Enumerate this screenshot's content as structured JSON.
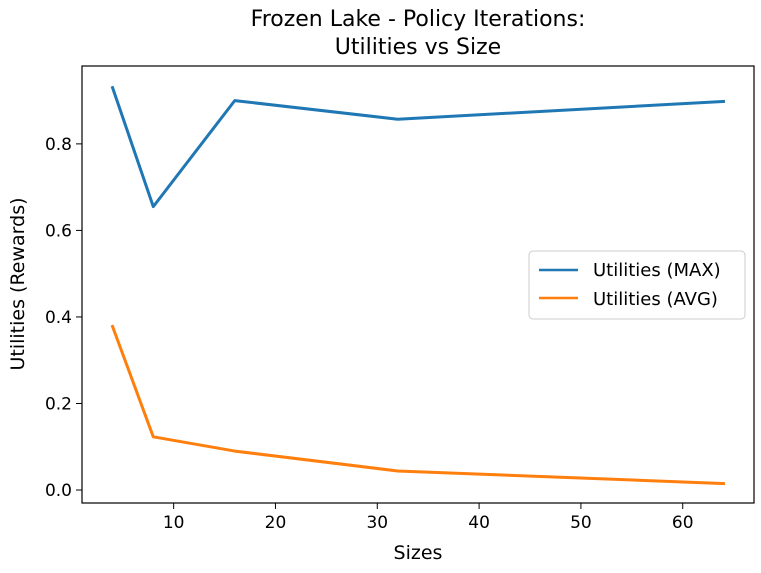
{
  "chart_data": {
    "type": "line",
    "title_line1": "Frozen Lake - Policy Iterations:",
    "title_line2": "Utilities vs Size",
    "xlabel": "Sizes",
    "ylabel": "Utilities (Rewards)",
    "x": [
      4,
      8,
      16,
      32,
      64
    ],
    "xlim": [
      0.999,
      67
    ],
    "ylim": [
      -0.03,
      0.98
    ],
    "xticks": [
      10,
      20,
      30,
      40,
      50,
      60
    ],
    "yticks": [
      0.0,
      0.2,
      0.4,
      0.6,
      0.8
    ],
    "ytick_labels": [
      "0.0",
      "0.2",
      "0.4",
      "0.6",
      "0.8"
    ],
    "xtick_labels": [
      "10",
      "20",
      "30",
      "40",
      "50",
      "60"
    ],
    "grid": false,
    "legend_position": "center-right",
    "series": [
      {
        "name": "Utilities (MAX)",
        "color": "#1f77b4",
        "values": [
          0.93,
          0.655,
          0.9,
          0.857,
          0.898
        ]
      },
      {
        "name": "Utilities (AVG)",
        "color": "#ff7f0e",
        "values": [
          0.378,
          0.123,
          0.09,
          0.044,
          0.015
        ]
      }
    ]
  }
}
